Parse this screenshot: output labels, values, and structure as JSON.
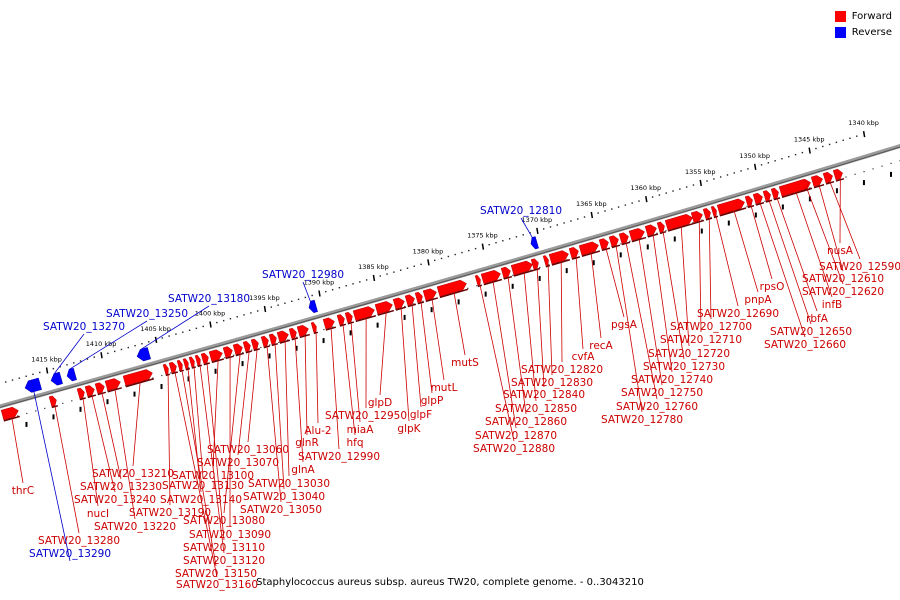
{
  "legend": {
    "forward_label": "Forward",
    "reverse_label": "Reverse",
    "forward_color": "#ff0000",
    "reverse_color": "#0000ff"
  },
  "caption": "Staphylococcus aureus subsp. aureus TW20, complete genome. - 0..3043210",
  "ruler": {
    "unit": "kbp",
    "ticks": [
      1340,
      1345,
      1350,
      1355,
      1360,
      1365,
      1370,
      1375,
      1380,
      1385,
      1390,
      1395,
      1400,
      1405,
      1410,
      1415
    ]
  },
  "genes": [
    {
      "name": "nusA",
      "strand": "forward"
    },
    {
      "name": "SATW20_12590",
      "strand": "forward"
    },
    {
      "name": "SATW20_12610",
      "strand": "forward"
    },
    {
      "name": "SATW20_12620",
      "strand": "forward"
    },
    {
      "name": "infB",
      "strand": "forward"
    },
    {
      "name": "rbfA",
      "strand": "forward"
    },
    {
      "name": "SATW20_12650",
      "strand": "forward"
    },
    {
      "name": "SATW20_12660",
      "strand": "forward"
    },
    {
      "name": "rpsO",
      "strand": "forward"
    },
    {
      "name": "pnpA",
      "strand": "forward"
    },
    {
      "name": "SATW20_12690",
      "strand": "forward"
    },
    {
      "name": "SATW20_12700",
      "strand": "forward"
    },
    {
      "name": "SATW20_12710",
      "strand": "forward"
    },
    {
      "name": "SATW20_12720",
      "strand": "forward"
    },
    {
      "name": "SATW20_12730",
      "strand": "forward"
    },
    {
      "name": "SATW20_12740",
      "strand": "forward"
    },
    {
      "name": "SATW20_12750",
      "strand": "forward"
    },
    {
      "name": "SATW20_12760",
      "strand": "forward"
    },
    {
      "name": "SATW20_12780",
      "strand": "forward"
    },
    {
      "name": "pgsA",
      "strand": "forward"
    },
    {
      "name": "recA",
      "strand": "forward"
    },
    {
      "name": "cvfA",
      "strand": "forward"
    },
    {
      "name": "SATW20_12810",
      "strand": "reverse"
    },
    {
      "name": "SATW20_12820",
      "strand": "forward"
    },
    {
      "name": "SATW20_12830",
      "strand": "forward"
    },
    {
      "name": "SATW20_12840",
      "strand": "forward"
    },
    {
      "name": "SATW20_12850",
      "strand": "forward"
    },
    {
      "name": "SATW20_12860",
      "strand": "forward"
    },
    {
      "name": "SATW20_12870",
      "strand": "forward"
    },
    {
      "name": "SATW20_12880",
      "strand": "forward"
    },
    {
      "name": "mutS",
      "strand": "forward"
    },
    {
      "name": "mutL",
      "strand": "forward"
    },
    {
      "name": "glpP",
      "strand": "forward"
    },
    {
      "name": "glpF",
      "strand": "forward"
    },
    {
      "name": "glpK",
      "strand": "forward"
    },
    {
      "name": "glpD",
      "strand": "forward"
    },
    {
      "name": "SATW20_12950",
      "strand": "forward"
    },
    {
      "name": "miaA",
      "strand": "forward"
    },
    {
      "name": "hfq",
      "strand": "forward"
    },
    {
      "name": "SATW20_12980",
      "strand": "reverse"
    },
    {
      "name": "SATW20_12990",
      "strand": "forward"
    },
    {
      "name": "Alu-2",
      "strand": "forward"
    },
    {
      "name": "glnR",
      "strand": "forward"
    },
    {
      "name": "glnA",
      "strand": "forward"
    },
    {
      "name": "SATW20_13030",
      "strand": "forward"
    },
    {
      "name": "SATW20_13040",
      "strand": "forward"
    },
    {
      "name": "SATW20_13050",
      "strand": "forward"
    },
    {
      "name": "SATW20_13060",
      "strand": "forward"
    },
    {
      "name": "SATW20_13070",
      "strand": "forward"
    },
    {
      "name": "SATW20_13080",
      "strand": "forward"
    },
    {
      "name": "SATW20_13090",
      "strand": "forward"
    },
    {
      "name": "SATW20_13100",
      "strand": "forward"
    },
    {
      "name": "SATW20_13110",
      "strand": "forward"
    },
    {
      "name": "SATW20_13120",
      "strand": "forward"
    },
    {
      "name": "SATW20_13130",
      "strand": "forward"
    },
    {
      "name": "SATW20_13140",
      "strand": "forward"
    },
    {
      "name": "SATW20_13150",
      "strand": "forward"
    },
    {
      "name": "SATW20_13160",
      "strand": "forward"
    },
    {
      "name": "SATW20_13180",
      "strand": "reverse"
    },
    {
      "name": "SATW20_13190",
      "strand": "forward"
    },
    {
      "name": "SATW20_13210",
      "strand": "forward"
    },
    {
      "name": "SATW20_13220",
      "strand": "forward"
    },
    {
      "name": "SATW20_13230",
      "strand": "forward"
    },
    {
      "name": "SATW20_13240",
      "strand": "forward"
    },
    {
      "name": "SATW20_13250",
      "strand": "reverse"
    },
    {
      "name": "nucI",
      "strand": "forward"
    },
    {
      "name": "SATW20_13270",
      "strand": "reverse"
    },
    {
      "name": "SATW20_13280",
      "strand": "forward"
    },
    {
      "name": "SATW20_13290",
      "strand": "reverse"
    },
    {
      "name": "thrC",
      "strand": "forward"
    }
  ]
}
